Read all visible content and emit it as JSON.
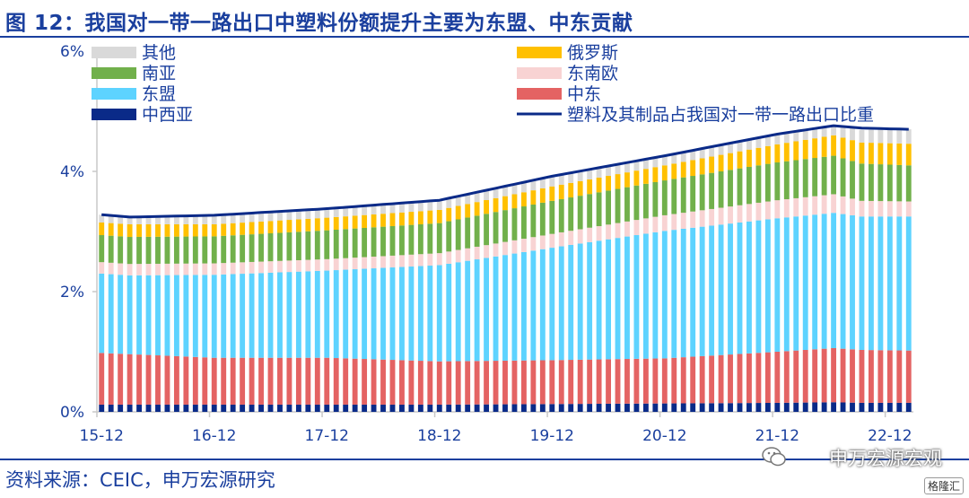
{
  "title": "图 12：我国对一带一路出口中塑料份额提升主要为东盟、中东贡献",
  "source": "资料来源：CEIC，申万宏源研究",
  "watermark": "申万宏源宏观",
  "corner_mark": "格隆汇",
  "colors": {
    "title": "#1a3f9e",
    "axis_text": "#1a3f9e"
  },
  "chart_data": {
    "type": "bar",
    "stacked": true,
    "y_format": "percent",
    "ylim": [
      0,
      6
    ],
    "yticks": [
      0,
      2,
      4,
      6
    ],
    "ytick_labels": [
      "0%",
      "2%",
      "4%",
      "6%"
    ],
    "xtick_labels": [
      "15-12",
      "16-12",
      "17-12",
      "18-12",
      "19-12",
      "20-12",
      "21-12",
      "22-12"
    ],
    "legend_position": "top",
    "anchors": [
      {
        "date": "15-12",
        "cx": 0.12,
        "me": 0.86,
        "asean": 1.32,
        "ee": 0.19,
        "sa": 0.45,
        "ru": 0.21,
        "ot": 0.13,
        "line": 3.28
      },
      {
        "date": "16-03",
        "cx": 0.12,
        "me": 0.84,
        "asean": 1.31,
        "ee": 0.19,
        "sa": 0.45,
        "ru": 0.21,
        "ot": 0.13,
        "line": 3.24
      },
      {
        "date": "16-12",
        "cx": 0.12,
        "me": 0.78,
        "asean": 1.38,
        "ee": 0.19,
        "sa": 0.45,
        "ru": 0.2,
        "ot": 0.14,
        "line": 3.27
      },
      {
        "date": "17-12",
        "cx": 0.12,
        "me": 0.78,
        "asean": 1.45,
        "ee": 0.19,
        "sa": 0.48,
        "ru": 0.21,
        "ot": 0.15,
        "line": 3.38
      },
      {
        "date": "18-12",
        "cx": 0.12,
        "me": 0.72,
        "asean": 1.6,
        "ee": 0.2,
        "sa": 0.5,
        "ru": 0.22,
        "ot": 0.16,
        "line": 3.52
      },
      {
        "date": "19-12",
        "cx": 0.13,
        "me": 0.73,
        "asean": 1.87,
        "ee": 0.23,
        "sa": 0.55,
        "ru": 0.24,
        "ot": 0.17,
        "line": 3.92
      },
      {
        "date": "20-12",
        "cx": 0.14,
        "me": 0.75,
        "asean": 2.12,
        "ee": 0.26,
        "sa": 0.58,
        "ru": 0.25,
        "ot": 0.16,
        "line": 4.26
      },
      {
        "date": "21-12",
        "cx": 0.15,
        "me": 0.85,
        "asean": 2.22,
        "ee": 0.3,
        "sa": 0.63,
        "ru": 0.3,
        "ot": 0.18,
        "line": 4.62
      },
      {
        "date": "22-06",
        "cx": 0.16,
        "me": 0.9,
        "asean": 2.25,
        "ee": 0.31,
        "sa": 0.64,
        "ru": 0.34,
        "ot": 0.18,
        "line": 4.76
      },
      {
        "date": "22-09",
        "cx": 0.15,
        "me": 0.88,
        "asean": 2.22,
        "ee": 0.26,
        "sa": 0.62,
        "ru": 0.35,
        "ot": 0.21,
        "line": 4.72
      },
      {
        "date": "23-02",
        "cx": 0.15,
        "me": 0.87,
        "asean": 2.23,
        "ee": 0.25,
        "sa": 0.6,
        "ru": 0.36,
        "ot": 0.24,
        "line": 4.7
      }
    ],
    "series": [
      {
        "key": "cx",
        "name": "中西亚",
        "color": "#0a2a88"
      },
      {
        "key": "me",
        "name": "中东",
        "color": "#e46363"
      },
      {
        "key": "asean",
        "name": "东盟",
        "color": "#5dd3ff"
      },
      {
        "key": "ee",
        "name": "东南欧",
        "color": "#f8d3d3"
      },
      {
        "key": "sa",
        "name": "南亚",
        "color": "#71b04b"
      },
      {
        "key": "ru",
        "name": "俄罗斯",
        "color": "#ffc000"
      },
      {
        "key": "ot",
        "name": "其他",
        "color": "#d9d9d9"
      }
    ],
    "line_series": {
      "name": "塑料及其制品占我国对一带一路出口比重",
      "color": "#0a2a88"
    },
    "legend_left": [
      "其他",
      "南亚",
      "东盟",
      "中西亚"
    ],
    "legend_right": [
      "俄罗斯",
      "东南欧",
      "中东",
      "塑料及其制品占我国对一带一路出口比重"
    ]
  }
}
